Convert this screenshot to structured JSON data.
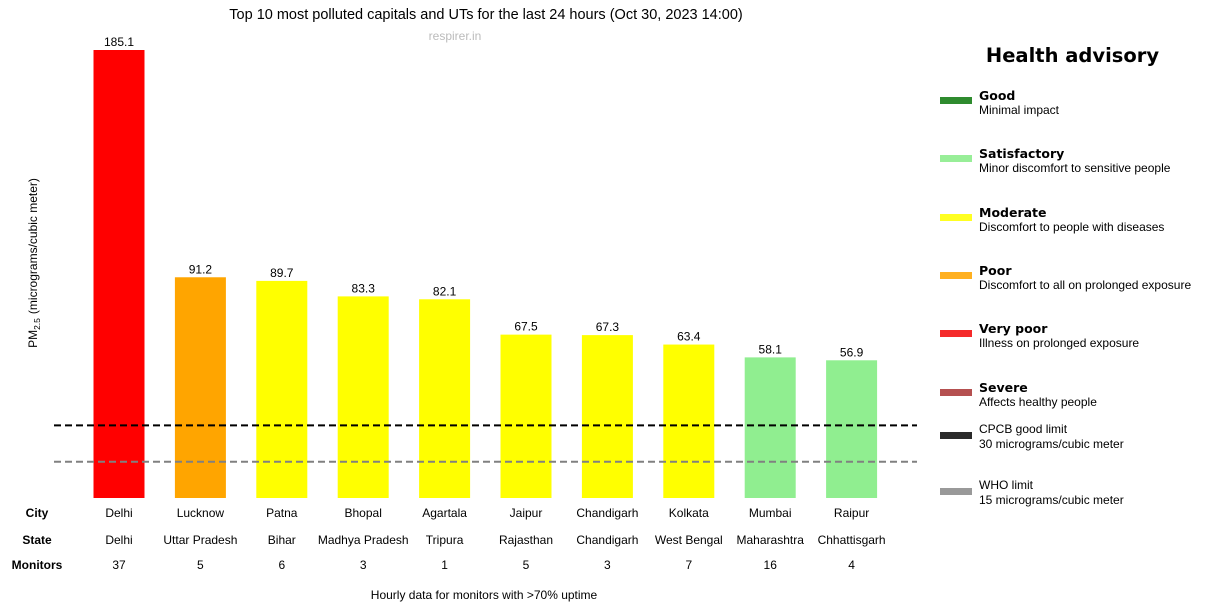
{
  "chart_data": {
    "type": "bar",
    "title": "Top 10 most polluted capitals and UTs for the last 24 hours (Oct 30, 2023 14:00)",
    "watermark": "respirer.in",
    "ylabel": "PM",
    "ylabel_sub": "2.5",
    "ylabel_unit": "(micrograms/cubic meter)",
    "footnote": "Hourly data for monitors with >70% uptime",
    "ylim": [
      0,
      185.1
    ],
    "categories": [
      "Delhi",
      "Lucknow",
      "Patna",
      "Bhopal",
      "Agartala",
      "Jaipur",
      "Chandigarh",
      "Kolkata",
      "Mumbai",
      "Raipur"
    ],
    "values": [
      185.1,
      91.2,
      89.7,
      83.3,
      82.1,
      67.5,
      67.3,
      63.4,
      58.1,
      56.9
    ],
    "value_labels": [
      "185.1",
      "91.2",
      "89.7",
      "83.3",
      "82.1",
      "67.5",
      "67.3",
      "63.4",
      "58.1",
      "56.9"
    ],
    "bar_colors": [
      "#ff0000",
      "#ffa500",
      "#ffff00",
      "#ffff00",
      "#ffff00",
      "#ffff00",
      "#ffff00",
      "#ffff00",
      "#90ee90",
      "#90ee90"
    ],
    "states": [
      "Delhi",
      "Uttar Pradesh",
      "Bihar",
      "Madhya Pradesh",
      "Tripura",
      "Rajasthan",
      "Chandigarh",
      "West Bengal",
      "Maharashtra",
      "Chhattisgarh"
    ],
    "monitors": [
      "37",
      "5",
      "6",
      "3",
      "1",
      "5",
      "3",
      "7",
      "16",
      "4"
    ],
    "row_headers": {
      "city": "City",
      "state": "State",
      "monitors": "Monitors"
    },
    "reference_lines": [
      {
        "name": "CPCB good limit",
        "value": 30,
        "color": "#000000",
        "style": "dashed"
      },
      {
        "name": "WHO limit",
        "value": 15,
        "color": "#808080",
        "style": "dashed"
      }
    ]
  },
  "advisory": {
    "title": "Health advisory",
    "items": [
      {
        "name": "Good",
        "desc": "Minimal impact",
        "color": "#2e8b2e"
      },
      {
        "name": "Satisfactory",
        "desc": "Minor discomfort to sensitive people",
        "color": "#98ee98"
      },
      {
        "name": "Moderate",
        "desc": "Discomfort to people with diseases",
        "color": "#ffff22"
      },
      {
        "name": "Poor",
        "desc": "Discomfort to all on prolonged exposure",
        "color": "#ffb020"
      },
      {
        "name": "Very poor",
        "desc": "Illness on prolonged exposure",
        "color": "#f52a2a"
      },
      {
        "name": "Severe",
        "desc": "Affects healthy people",
        "color": "#b55050"
      }
    ],
    "limits": [
      {
        "line1": "CPCB good limit",
        "line2": "30 micrograms/cubic meter",
        "color": "#2a2a2a"
      },
      {
        "line1": "WHO limit",
        "line2": "15 micrograms/cubic meter",
        "color": "#999999"
      }
    ]
  }
}
